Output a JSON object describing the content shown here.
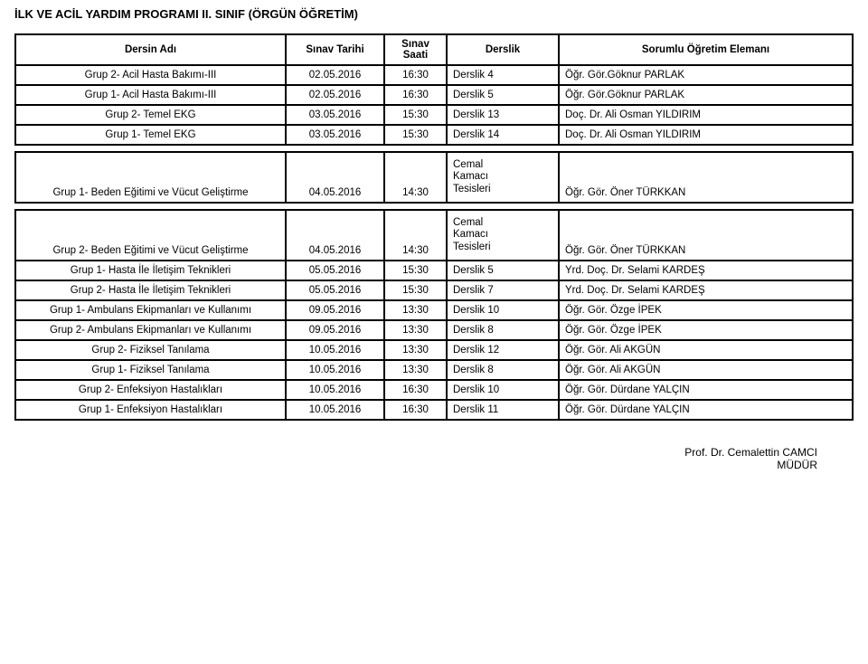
{
  "page_title": "İLK VE ACİL YARDIM PROGRAMI II. SINIF (ÖRGÜN ÖĞRETİM)",
  "header": {
    "course_name": "Dersin Adı",
    "exam_date": "Sınav Tarihi",
    "exam_time": "Sınav\nSaati",
    "room": "Derslik",
    "instructor": "Sorumlu Öğretim Elemanı"
  },
  "rows": [
    {
      "name": "Grup 2- Acil Hasta Bakımı-III",
      "date": "02.05.2016",
      "time": "16:30",
      "room": "Derslik 4",
      "instructor": "Öğr. Gör.Göknur PARLAK"
    },
    {
      "name": "Grup 1- Acil Hasta Bakımı-III",
      "date": "02.05.2016",
      "time": "16:30",
      "room": "Derslik 5",
      "instructor": "Öğr. Gör.Göknur PARLAK"
    },
    {
      "name": "Grup 2- Temel EKG",
      "date": "03.05.2016",
      "time": "15:30",
      "room": "Derslik 13",
      "instructor": "Doç. Dr. Ali Osman YILDIRIM"
    },
    {
      "name": "Grup 1- Temel EKG",
      "date": "03.05.2016",
      "time": "15:30",
      "room": "Derslik 14",
      "instructor": "Doç. Dr. Ali Osman YILDIRIM"
    }
  ],
  "tall_rows": [
    {
      "name": "Grup 1- Beden Eğitimi ve Vücut Geliştirme",
      "date": "04.05.2016",
      "time": "14:30",
      "room": "Cemal\nKamacı\nTesisleri",
      "instructor": "Öğr. Gör. Öner TÜRKKAN"
    },
    {
      "name": "Grup 2- Beden Eğitimi ve Vücut Geliştirme",
      "date": "04.05.2016",
      "time": "14:30",
      "room": "Cemal\nKamacı\nTesisleri",
      "instructor": "Öğr. Gör. Öner TÜRKKAN"
    }
  ],
  "rows2": [
    {
      "name": "Grup 1- Hasta İle İletişim Teknikleri",
      "date": "05.05.2016",
      "time": "15:30",
      "room": "Derslik 5",
      "instructor": "Yrd. Doç. Dr. Selami KARDEŞ"
    },
    {
      "name": "Grup 2- Hasta İle İletişim Teknikleri",
      "date": "05.05.2016",
      "time": "15:30",
      "room": "Derslik 7",
      "instructor": "Yrd. Doç. Dr. Selami KARDEŞ"
    },
    {
      "name": "Grup 1- Ambulans Ekipmanları ve Kullanımı",
      "date": "09.05.2016",
      "time": "13:30",
      "room": "Derslik 10",
      "instructor": "Öğr. Gör. Özge İPEK"
    },
    {
      "name": "Grup 2- Ambulans Ekipmanları ve Kullanımı",
      "date": "09.05.2016",
      "time": "13:30",
      "room": "Derslik 8",
      "instructor": "Öğr. Gör. Özge İPEK"
    },
    {
      "name": "Grup 2- Fiziksel Tanılama",
      "date": "10.05.2016",
      "time": "13:30",
      "room": "Derslik 12",
      "instructor": "Öğr. Gör. Ali AKGÜN"
    },
    {
      "name": "Grup 1- Fiziksel Tanılama",
      "date": "10.05.2016",
      "time": "13:30",
      "room": "Derslik 8",
      "instructor": "Öğr. Gör. Ali AKGÜN"
    },
    {
      "name": "Grup 2- Enfeksiyon Hastalıkları",
      "date": "10.05.2016",
      "time": "16:30",
      "room": "Derslik 10",
      "instructor": "Öğr. Gör. Dürdane YALÇIN"
    },
    {
      "name": "Grup 1- Enfeksiyon Hastalıkları",
      "date": "10.05.2016",
      "time": "16:30",
      "room": "Derslik 11",
      "instructor": "Öğr. Gör. Dürdane YALÇIN"
    }
  ],
  "footer": {
    "line1": "Prof. Dr. Cemalettin CAMCI",
    "line2": "MÜDÜR"
  }
}
